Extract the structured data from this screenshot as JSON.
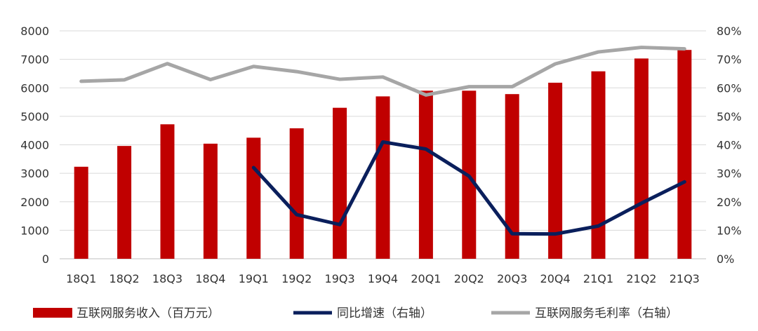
{
  "chart_data": {
    "type": "bar",
    "title": "",
    "categories": [
      "18Q1",
      "18Q2",
      "18Q3",
      "18Q4",
      "19Q1",
      "19Q2",
      "19Q3",
      "19Q4",
      "20Q1",
      "20Q2",
      "20Q3",
      "20Q4",
      "21Q1",
      "21Q2",
      "21Q3"
    ],
    "series": [
      {
        "name": "互联网服务收入（百万元）",
        "type": "bar",
        "axis": "left",
        "color": "#C00000",
        "values": [
          3230,
          3960,
          4720,
          4040,
          4250,
          4580,
          5300,
          5700,
          5900,
          5900,
          5780,
          6180,
          6580,
          7030,
          7330
        ]
      },
      {
        "name": "同比增速（右轴）",
        "type": "line",
        "axis": "right",
        "color": "#0A1F5C",
        "values": [
          null,
          null,
          null,
          null,
          32,
          15.5,
          12,
          41,
          38.5,
          29,
          8.8,
          8.7,
          11.5,
          19.5,
          27
        ]
      },
      {
        "name": "互联网服务毛利率（右轴）",
        "type": "line",
        "axis": "right",
        "color": "#A6A6A6",
        "values": [
          62.3,
          62.8,
          68.5,
          62.9,
          67.5,
          65.7,
          63,
          63.8,
          57.5,
          60.4,
          60.4,
          68.4,
          72.6,
          74.2,
          73.7
        ]
      }
    ],
    "y_left": {
      "min": 0,
      "max": 8000,
      "step": 1000,
      "ticks": [
        "0",
        "1000",
        "2000",
        "3000",
        "4000",
        "5000",
        "6000",
        "7000",
        "8000"
      ]
    },
    "y_right": {
      "min": 0,
      "max": 80,
      "step": 10,
      "ticks": [
        "0%",
        "10%",
        "20%",
        "30%",
        "40%",
        "50%",
        "60%",
        "70%",
        "80%"
      ]
    },
    "grid": true,
    "legend_position": "bottom"
  }
}
